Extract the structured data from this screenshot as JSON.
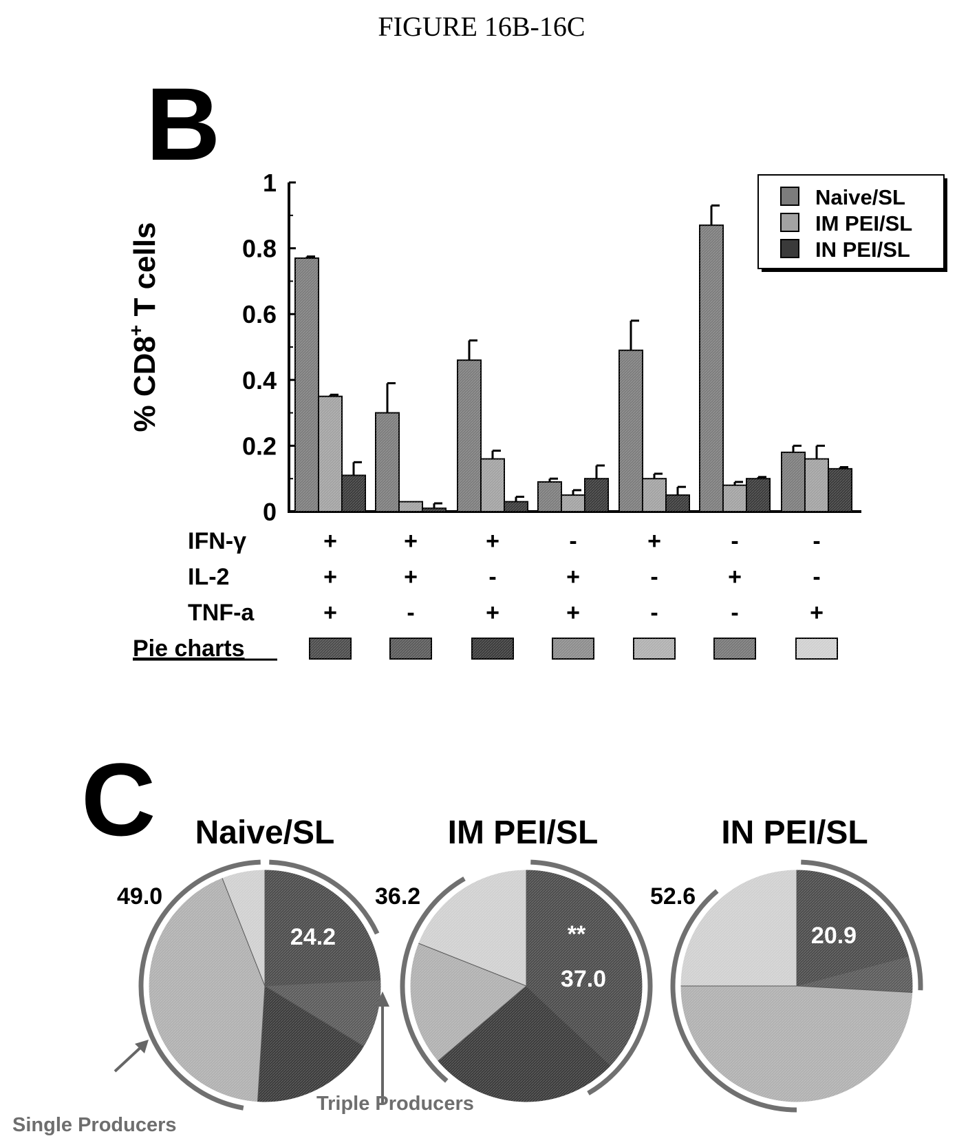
{
  "figure_title": "FIGURE 16B-16C",
  "colors": {
    "naive": "#7c7c7c",
    "im": "#a2a2a2",
    "in": "#3a3a3a",
    "pie_fill": [
      "#4b4b4b",
      "#5a5a5a",
      "#3a3a3a",
      "#8c8c8c",
      "#b0b0b0",
      "#777777",
      "#d0d0d0"
    ],
    "ring": "#707070",
    "arrow": "#666666"
  },
  "panel_b": {
    "letter": "B",
    "row_labels": [
      "IFN-γ",
      "IL-2",
      "TNF-a"
    ],
    "pie_charts_label": "Pie charts",
    "combos": [
      [
        "+",
        "+",
        "+"
      ],
      [
        "+",
        "+",
        "-"
      ],
      [
        "+",
        "-",
        "+"
      ],
      [
        "-",
        "+",
        "+"
      ],
      [
        "+",
        "-",
        "-"
      ],
      [
        "-",
        "+",
        "-"
      ],
      [
        "-",
        "-",
        "+"
      ]
    ]
  },
  "panel_c": {
    "letter": "C",
    "pies": [
      {
        "title": "Naive/SL",
        "side_value": "49.0",
        "inner_labels": [
          "24.2"
        ]
      },
      {
        "title": "IM PEI/SL",
        "side_value": "36.2",
        "inner_labels": [
          "**",
          "37.0"
        ]
      },
      {
        "title": "IN PEI/SL",
        "side_value": "52.6",
        "inner_labels": [
          "20.9"
        ]
      }
    ],
    "single_producers_label": "Single Producers",
    "triple_producers_label": "Triple Producers"
  },
  "chart_data": [
    {
      "type": "bar",
      "ylabel": "% CD8",
      "ylabel_sup": "+",
      "ylabel_suffix": " T cells",
      "ylim": [
        0,
        1
      ],
      "yticks": [
        "0",
        "0.2",
        "0.4",
        "0.6",
        "0.8",
        "1"
      ],
      "ytick_values": [
        0,
        0.2,
        0.4,
        0.6,
        0.8,
        1
      ],
      "grid": false,
      "legend_position": "top-right",
      "series": [
        {
          "name": "Naive/SL",
          "values": [
            0.77,
            0.3,
            0.46,
            0.09,
            0.49,
            0.87,
            0.18
          ],
          "errors": [
            0.005,
            0.09,
            0.06,
            0.01,
            0.09,
            0.06,
            0.02
          ]
        },
        {
          "name": "IM PEI/SL",
          "values": [
            0.35,
            0.03,
            0.16,
            0.05,
            0.1,
            0.08,
            0.16
          ],
          "errors": [
            0.005,
            0.0,
            0.025,
            0.015,
            0.015,
            0.01,
            0.04
          ]
        },
        {
          "name": "IN PEI/SL",
          "values": [
            0.11,
            0.01,
            0.03,
            0.1,
            0.05,
            0.1,
            0.13
          ],
          "errors": [
            0.04,
            0.015,
            0.015,
            0.04,
            0.025,
            0.005,
            0.005
          ]
        }
      ]
    },
    {
      "type": "pie",
      "title": "Naive/SL",
      "slices": [
        {
          "combo": 1,
          "value": 24.2
        },
        {
          "combo": 2,
          "value": 9.5
        },
        {
          "combo": 3,
          "value": 17.3
        },
        {
          "combo": 5,
          "value": 43.0
        },
        {
          "combo": 7,
          "value": 6.0
        }
      ]
    },
    {
      "type": "pie",
      "title": "IM PEI/SL",
      "slices": [
        {
          "combo": 1,
          "value": 37.0
        },
        {
          "combo": 3,
          "value": 26.8
        },
        {
          "combo": 5,
          "value": 17.2
        },
        {
          "combo": 7,
          "value": 19.0
        }
      ]
    },
    {
      "type": "pie",
      "title": "IN PEI/SL",
      "slices": [
        {
          "combo": 1,
          "value": 20.9
        },
        {
          "combo": 2,
          "value": 5.0
        },
        {
          "combo": 5,
          "value": 49.1
        },
        {
          "combo": 7,
          "value": 25.0
        }
      ]
    }
  ]
}
